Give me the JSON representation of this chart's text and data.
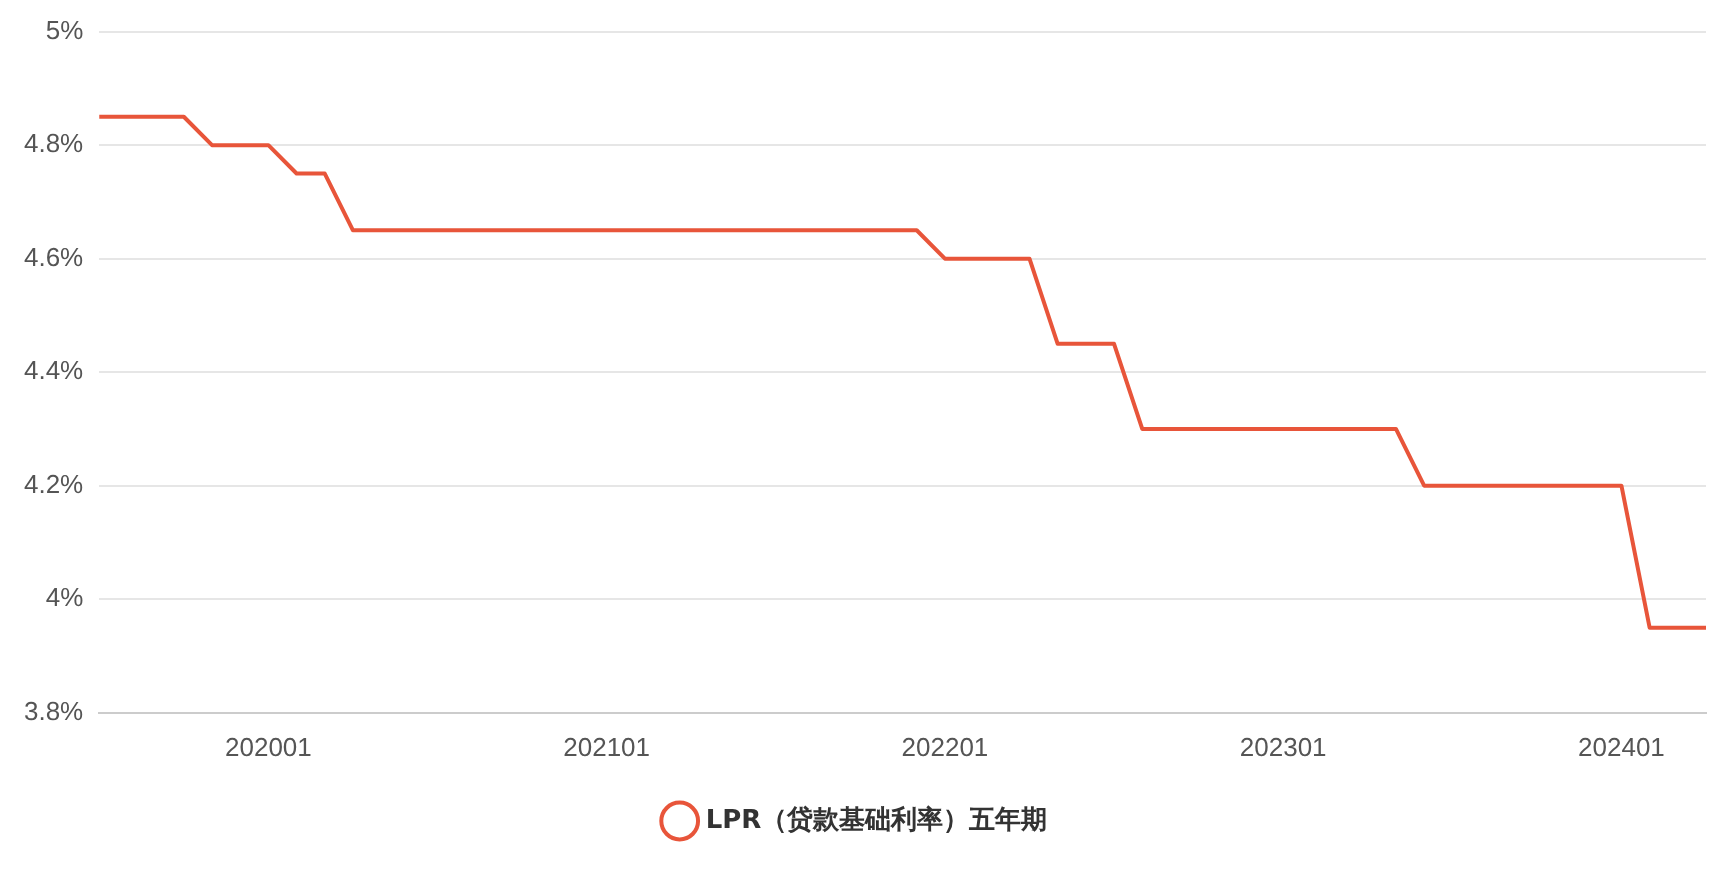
{
  "chart_data": {
    "type": "line",
    "categories": [
      null,
      null,
      null,
      null,
      null,
      null,
      "202001",
      null,
      null,
      null,
      null,
      null,
      null,
      null,
      null,
      null,
      null,
      null,
      "202101",
      null,
      null,
      null,
      null,
      null,
      null,
      null,
      null,
      null,
      null,
      null,
      "202201",
      null,
      null,
      null,
      null,
      null,
      null,
      null,
      null,
      null,
      null,
      null,
      "202301",
      null,
      null,
      null,
      null,
      null,
      null,
      null,
      null,
      null,
      null,
      null,
      "202401",
      null,
      null,
      null
    ],
    "series": [
      {
        "name": "LPR（贷款基础利率）五年期",
        "color": "#e8553a",
        "values": [
          4.85,
          4.85,
          4.85,
          4.85,
          4.8,
          4.8,
          4.8,
          4.75,
          4.75,
          4.65,
          4.65,
          4.65,
          4.65,
          4.65,
          4.65,
          4.65,
          4.65,
          4.65,
          4.65,
          4.65,
          4.65,
          4.65,
          4.65,
          4.65,
          4.65,
          4.65,
          4.65,
          4.65,
          4.65,
          4.65,
          4.6,
          4.6,
          4.6,
          4.6,
          4.45,
          4.45,
          4.45,
          4.3,
          4.3,
          4.3,
          4.3,
          4.3,
          4.3,
          4.3,
          4.3,
          4.3,
          4.3,
          4.2,
          4.2,
          4.2,
          4.2,
          4.2,
          4.2,
          4.2,
          4.2,
          3.95,
          3.95,
          3.95
        ]
      }
    ],
    "ylim": [
      3.8,
      5
    ],
    "yticks": [
      {
        "value": 3.8,
        "label": "3.8%"
      },
      {
        "value": 4,
        "label": "4%"
      },
      {
        "value": 4.2,
        "label": "4.2%"
      },
      {
        "value": 4.4,
        "label": "4.4%"
      },
      {
        "value": 4.6,
        "label": "4.6%"
      },
      {
        "value": 4.8,
        "label": "4.8%"
      },
      {
        "value": 5,
        "label": "5%"
      }
    ],
    "grid": "y",
    "legend": "bottom",
    "marker": "none",
    "line_style": "solid"
  }
}
